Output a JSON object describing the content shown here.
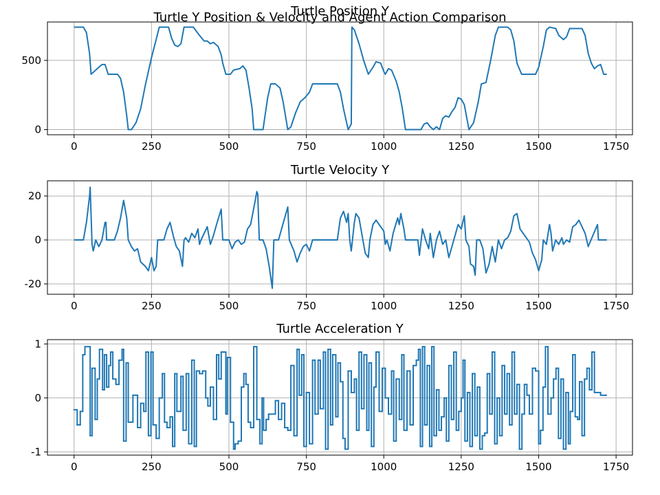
{
  "title": "Turtle Y Position & Velocity and Agent Action Comparison",
  "chart_data": [
    {
      "type": "line",
      "title": "Turtle Position Y",
      "color": "#1f77b4",
      "grid": true,
      "xlim": [
        -86,
        1803
      ],
      "ylim": [
        -37,
        777
      ],
      "xticks": [
        0,
        250,
        500,
        750,
        1000,
        1250,
        1500,
        1750
      ],
      "yticks": [
        0,
        500
      ],
      "x": [
        0,
        30,
        40,
        50,
        55,
        70,
        80,
        90,
        100,
        110,
        140,
        150,
        160,
        170,
        175,
        185,
        200,
        215,
        230,
        250,
        265,
        275,
        305,
        315,
        325,
        335,
        345,
        355,
        385,
        395,
        405,
        420,
        430,
        440,
        450,
        465,
        475,
        480,
        490,
        505,
        515,
        535,
        545,
        555,
        565,
        575,
        580,
        610,
        625,
        635,
        650,
        665,
        675,
        690,
        700,
        715,
        730,
        745,
        760,
        770,
        850,
        860,
        870,
        880,
        885,
        895,
        897,
        905,
        920,
        935,
        950,
        965,
        975,
        990,
        1000,
        1005,
        1015,
        1025,
        1040,
        1050,
        1060,
        1070,
        1120,
        1130,
        1140,
        1150,
        1160,
        1170,
        1180,
        1190,
        1200,
        1210,
        1220,
        1230,
        1240,
        1250,
        1260,
        1270,
        1275,
        1290,
        1305,
        1315,
        1330,
        1345,
        1360,
        1370,
        1400,
        1410,
        1420,
        1430,
        1445,
        1465,
        1490,
        1500,
        1515,
        1525,
        1535,
        1555,
        1565,
        1580,
        1590,
        1600,
        1640,
        1650,
        1660,
        1670,
        1680,
        1690,
        1700,
        1710,
        1720
      ],
      "values": [
        740,
        740,
        700,
        550,
        400,
        430,
        450,
        470,
        470,
        400,
        400,
        370,
        270,
        100,
        0,
        0,
        50,
        150,
        320,
        520,
        650,
        740,
        740,
        660,
        610,
        600,
        620,
        740,
        740,
        710,
        680,
        640,
        640,
        620,
        630,
        600,
        540,
        480,
        400,
        400,
        430,
        440,
        460,
        430,
        300,
        150,
        0,
        0,
        230,
        330,
        330,
        300,
        200,
        0,
        20,
        120,
        200,
        230,
        270,
        330,
        330,
        270,
        150,
        50,
        0,
        40,
        740,
        720,
        620,
        500,
        400,
        450,
        490,
        480,
        420,
        400,
        440,
        430,
        350,
        270,
        150,
        0,
        0,
        40,
        50,
        20,
        0,
        20,
        0,
        80,
        100,
        90,
        130,
        160,
        230,
        220,
        180,
        60,
        0,
        50,
        200,
        330,
        340,
        500,
        680,
        740,
        740,
        720,
        640,
        480,
        400,
        400,
        400,
        450,
        600,
        720,
        740,
        730,
        680,
        650,
        670,
        730,
        730,
        680,
        550,
        480,
        440,
        460,
        470,
        400,
        400
      ]
    },
    {
      "type": "line",
      "title": "Turtle Velocity Y",
      "color": "#1f77b4",
      "grid": true,
      "xlim": [
        -86,
        1803
      ],
      "ylim": [
        -24.7,
        26.9
      ],
      "xticks": [
        0,
        250,
        500,
        750,
        1000,
        1250,
        1500,
        1750
      ],
      "yticks": [
        -20,
        0,
        20
      ],
      "x": [
        0,
        30,
        40,
        50,
        52,
        58,
        62,
        70,
        80,
        90,
        100,
        103,
        105,
        130,
        140,
        150,
        160,
        170,
        175,
        185,
        195,
        205,
        215,
        230,
        240,
        250,
        258,
        265,
        270,
        290,
        300,
        310,
        320,
        330,
        340,
        350,
        355,
        360,
        370,
        380,
        390,
        400,
        405,
        410,
        420,
        430,
        440,
        450,
        460,
        475,
        480,
        500,
        510,
        520,
        530,
        540,
        550,
        560,
        570,
        585,
        590,
        593,
        598,
        610,
        620,
        630,
        640,
        645,
        660,
        670,
        680,
        690,
        695,
        710,
        720,
        730,
        740,
        750,
        760,
        770,
        850,
        860,
        870,
        880,
        885,
        890,
        895,
        905,
        910,
        920,
        930,
        940,
        950,
        955,
        965,
        975,
        985,
        1000,
        1005,
        1010,
        1020,
        1030,
        1045,
        1050,
        1055,
        1065,
        1070,
        1110,
        1115,
        1125,
        1135,
        1145,
        1150,
        1160,
        1170,
        1180,
        1190,
        1200,
        1210,
        1220,
        1230,
        1240,
        1250,
        1260,
        1265,
        1275,
        1280,
        1290,
        1295,
        1300,
        1310,
        1320,
        1330,
        1340,
        1350,
        1360,
        1370,
        1380,
        1390,
        1400,
        1410,
        1420,
        1430,
        1440,
        1450,
        1460,
        1470,
        1480,
        1490,
        1500,
        1510,
        1515,
        1525,
        1535,
        1540,
        1545,
        1555,
        1565,
        1575,
        1580,
        1590,
        1600,
        1610,
        1620,
        1630,
        1640,
        1650,
        1660,
        1675,
        1690,
        1693,
        1720
      ],
      "values": [
        0,
        0,
        8,
        20,
        24,
        -2,
        -5,
        0,
        -3,
        0,
        8,
        8,
        0,
        0,
        4,
        10,
        18,
        10,
        0,
        -3,
        -5,
        -4,
        -10,
        -12,
        -14,
        -8,
        -14,
        -12,
        0,
        0,
        5,
        8,
        2,
        -3,
        -5,
        -12,
        0,
        1,
        -1,
        3,
        1,
        5,
        -2,
        0,
        3,
        6,
        -2,
        2,
        7,
        14,
        0,
        0,
        -4,
        -1,
        0,
        -2,
        -1,
        5,
        7,
        18,
        22,
        21,
        0,
        0,
        -4,
        -12,
        -22,
        0,
        0,
        5,
        10,
        15,
        0,
        -5,
        -10,
        -6,
        -3,
        -2,
        -5,
        0,
        0,
        10,
        13,
        8,
        12,
        0,
        -5,
        8,
        12,
        10,
        2,
        -6,
        -8,
        0,
        7,
        9,
        7,
        4,
        -2,
        0,
        -5,
        3,
        10,
        7,
        12,
        5,
        0,
        0,
        -7,
        5,
        0,
        -4,
        3,
        -8,
        0,
        4,
        -2,
        0,
        -8,
        -3,
        2,
        7,
        5,
        11,
        0,
        -3,
        -11,
        -12,
        -16,
        0,
        0,
        -4,
        -15,
        -11,
        -3,
        -10,
        0,
        -4,
        0,
        1,
        4,
        11,
        12,
        5,
        3,
        1,
        -1,
        -6,
        -9,
        -14,
        -9,
        0,
        -2,
        7,
        3,
        -5,
        0,
        -2,
        1,
        -2,
        0,
        -1,
        6,
        7,
        9,
        6,
        3,
        -3,
        2,
        7,
        0,
        0
      ]
    },
    {
      "type": "line",
      "drawstyle": "steps-post",
      "title": "Turtle Acceleration Y",
      "color": "#1f77b4",
      "grid": true,
      "xlim": [
        -86,
        1803
      ],
      "ylim": [
        -1.06,
        1.08
      ],
      "xticks": [
        0,
        250,
        500,
        750,
        1000,
        1250,
        1500,
        1750
      ],
      "yticks": [
        -1,
        0,
        1
      ],
      "x": [
        0,
        10,
        20,
        28,
        35,
        52,
        58,
        68,
        75,
        82,
        92,
        98,
        105,
        112,
        118,
        125,
        135,
        145,
        155,
        160,
        168,
        175,
        190,
        205,
        215,
        225,
        232,
        240,
        248,
        255,
        265,
        275,
        285,
        292,
        300,
        310,
        318,
        325,
        332,
        345,
        352,
        362,
        370,
        380,
        388,
        395,
        405,
        415,
        425,
        432,
        440,
        450,
        460,
        467,
        475,
        482,
        490,
        495,
        505,
        515,
        520,
        530,
        540,
        548,
        555,
        562,
        570,
        580,
        590,
        600,
        607,
        612,
        620,
        628,
        650,
        660,
        670,
        680,
        690,
        700,
        710,
        720,
        727,
        735,
        742,
        750,
        760,
        770,
        778,
        788,
        795,
        805,
        812,
        820,
        828,
        835,
        845,
        852,
        860,
        868,
        875,
        885,
        895,
        905,
        912,
        920,
        928,
        936,
        945,
        952,
        960,
        968,
        975,
        985,
        995,
        1005,
        1015,
        1025,
        1032,
        1040,
        1050,
        1058,
        1065,
        1075,
        1085,
        1095,
        1105,
        1112,
        1118,
        1125,
        1132,
        1140,
        1148,
        1155,
        1162,
        1170,
        1178,
        1186,
        1195,
        1202,
        1210,
        1218,
        1226,
        1234,
        1242,
        1250,
        1256,
        1262,
        1270,
        1278,
        1286,
        1294,
        1302,
        1310,
        1318,
        1326,
        1334,
        1342,
        1350,
        1358,
        1366,
        1374,
        1382,
        1390,
        1398,
        1406,
        1414,
        1422,
        1430,
        1438,
        1446,
        1454,
        1462,
        1470,
        1480,
        1490,
        1500,
        1506,
        1514,
        1522,
        1530,
        1540,
        1548,
        1556,
        1564,
        1572,
        1580,
        1588,
        1596,
        1602,
        1610,
        1618,
        1626,
        1632,
        1640,
        1648,
        1656,
        1664,
        1672,
        1680,
        1700,
        1718
      ],
      "values": [
        -0.22,
        -0.5,
        -0.25,
        0.8,
        0.95,
        -0.7,
        0.55,
        -0.4,
        0.35,
        0.9,
        0.15,
        0.8,
        0.2,
        0.6,
        0.85,
        0.35,
        0.25,
        0.7,
        0.9,
        -0.8,
        0.65,
        -0.45,
        0.05,
        -0.55,
        -0.1,
        -0.25,
        0.85,
        -0.7,
        0.85,
        -0.5,
        -0.75,
        0.0,
        0.45,
        -0.45,
        -0.55,
        -0.35,
        -0.9,
        0.45,
        -0.25,
        0.4,
        -0.6,
        0.45,
        -0.85,
        0.7,
        -0.9,
        0.5,
        0.45,
        0.5,
        0.0,
        -0.15,
        0.2,
        -0.4,
        0.8,
        0.35,
        0.85,
        0.85,
        -0.3,
        0.75,
        -0.45,
        -0.95,
        -0.85,
        -0.8,
        0.2,
        0.45,
        0.25,
        -0.45,
        -0.55,
        0.95,
        -0.4,
        -0.85,
        0.0,
        -0.6,
        -0.4,
        -0.3,
        -0.05,
        -0.4,
        -0.1,
        -0.55,
        -0.6,
        0.6,
        -0.7,
        0.9,
        0.05,
        0.8,
        -0.9,
        0.1,
        -0.85,
        0.7,
        -0.3,
        0.7,
        -0.2,
        0.85,
        -0.95,
        0.9,
        -0.5,
        0.8,
        -0.35,
        0.65,
        0.3,
        -0.75,
        -0.95,
        0.5,
        0.1,
        0.35,
        -0.6,
        0.85,
        -0.2,
        0.8,
        -0.6,
        0.65,
        -0.9,
        0.2,
        0.85,
        -0.25,
        0.55,
        0.0,
        -0.3,
        0.5,
        -0.8,
        0.35,
        -0.4,
        0.8,
        -0.6,
        0.5,
        -0.5,
        0.6,
        0.7,
        0.9,
        -0.9,
        0.95,
        -0.5,
        0.6,
        -0.9,
        0.95,
        -0.7,
        0.15,
        -0.6,
        -0.35,
        0.0,
        -0.8,
        0.6,
        -0.4,
        0.85,
        -0.6,
        -0.25,
        0.0,
        0.7,
        -0.8,
        0.1,
        -0.9,
        0.45,
        -0.7,
        0.2,
        -0.95,
        -0.7,
        -0.65,
        0.45,
        -0.3,
        0.85,
        -0.85,
        0.0,
        -0.7,
        0.6,
        -0.3,
        0.45,
        -0.5,
        0.85,
        -0.3,
        0.25,
        -0.95,
        -0.3,
        0.25,
        0.05,
        -0.3,
        0.55,
        0.5,
        -0.85,
        -0.6,
        0.2,
        0.95,
        -0.3,
        0.0,
        0.35,
        0.55,
        -0.75,
        0.35,
        -0.95,
        0.1,
        -0.85,
        -0.25,
        0.8,
        -0.35,
        -0.4,
        0.3,
        -0.7,
        0.35,
        0.55,
        0.15,
        0.85,
        0.1,
        0.05,
        0.05
      ]
    }
  ]
}
